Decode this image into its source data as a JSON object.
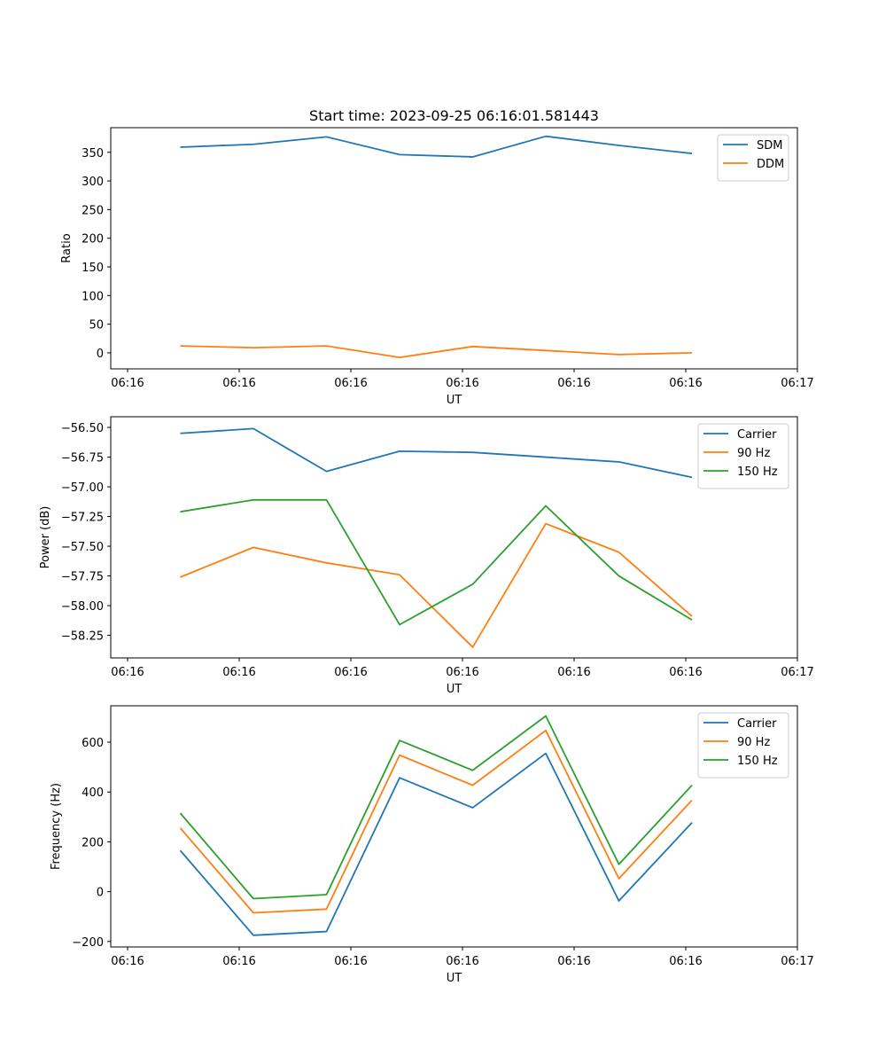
{
  "chart_data": [
    {
      "type": "line",
      "title": "Start time: 2023-09-25 06:16:01.581443",
      "xlabel": "UT",
      "ylabel": "Ratio",
      "x_ticks": [
        "06:16",
        "06:16",
        "06:16",
        "06:16",
        "06:16",
        "06:16",
        "06:17"
      ],
      "y_ticks": [
        0,
        50,
        100,
        150,
        200,
        250,
        300,
        350
      ],
      "ylim": [
        -28,
        393
      ],
      "x_index": [
        0,
        1,
        2,
        3,
        4,
        5,
        6,
        7
      ],
      "legend_position": "top-right",
      "series": [
        {
          "name": "SDM",
          "color": "#1f77b4",
          "values": [
            359,
            364,
            377,
            346,
            342,
            378,
            362,
            348
          ]
        },
        {
          "name": "DDM",
          "color": "#ff7f0e",
          "values": [
            12,
            9,
            12,
            -8,
            11,
            4,
            -3,
            0
          ]
        }
      ]
    },
    {
      "type": "line",
      "title": "",
      "xlabel": "UT",
      "ylabel": "Power (dB)",
      "x_ticks": [
        "06:16",
        "06:16",
        "06:16",
        "06:16",
        "06:16",
        "06:16",
        "06:17"
      ],
      "y_ticks": [
        -56.5,
        -56.75,
        -57.0,
        -57.25,
        -57.5,
        -57.75,
        -58.0,
        -58.25
      ],
      "y_tick_labels": [
        "−56.50",
        "−56.75",
        "−57.00",
        "−57.25",
        "−57.50",
        "−57.75",
        "−58.00",
        "−58.25"
      ],
      "ylim": [
        -58.44,
        -56.41
      ],
      "x_index": [
        0,
        1,
        2,
        3,
        4,
        5,
        6,
        7
      ],
      "legend_position": "top-right",
      "series": [
        {
          "name": "Carrier",
          "color": "#1f77b4",
          "values": [
            -56.55,
            -56.51,
            -56.87,
            -56.7,
            -56.71,
            -56.75,
            -56.79,
            -56.92
          ]
        },
        {
          "name": "90 Hz",
          "color": "#ff7f0e",
          "values": [
            -57.76,
            -57.51,
            -57.64,
            -57.74,
            -58.35,
            -57.31,
            -57.55,
            -58.09
          ]
        },
        {
          "name": "150 Hz",
          "color": "#2ca02c",
          "values": [
            -57.21,
            -57.11,
            -57.11,
            -58.16,
            -57.82,
            -57.16,
            -57.75,
            -58.12
          ]
        }
      ]
    },
    {
      "type": "line",
      "title": "",
      "xlabel": "UT",
      "ylabel": "Frequency (Hz)",
      "x_ticks": [
        "06:16",
        "06:16",
        "06:16",
        "06:16",
        "06:16",
        "06:16",
        "06:17"
      ],
      "y_ticks": [
        -200,
        0,
        200,
        400,
        600
      ],
      "y_tick_labels": [
        "−200",
        "0",
        "200",
        "400",
        "600"
      ],
      "ylim": [
        -222,
        746
      ],
      "x_index": [
        0,
        1,
        2,
        3,
        4,
        5,
        6,
        7
      ],
      "legend_position": "top-right",
      "series": [
        {
          "name": "Carrier",
          "color": "#1f77b4",
          "values": [
            165,
            -175,
            -160,
            457,
            337,
            555,
            -37,
            277
          ]
        },
        {
          "name": "90 Hz",
          "color": "#ff7f0e",
          "values": [
            255,
            -85,
            -70,
            548,
            427,
            647,
            52,
            367
          ]
        },
        {
          "name": "150 Hz",
          "color": "#2ca02c",
          "values": [
            315,
            -28,
            -12,
            607,
            487,
            705,
            110,
            427
          ]
        }
      ]
    }
  ]
}
